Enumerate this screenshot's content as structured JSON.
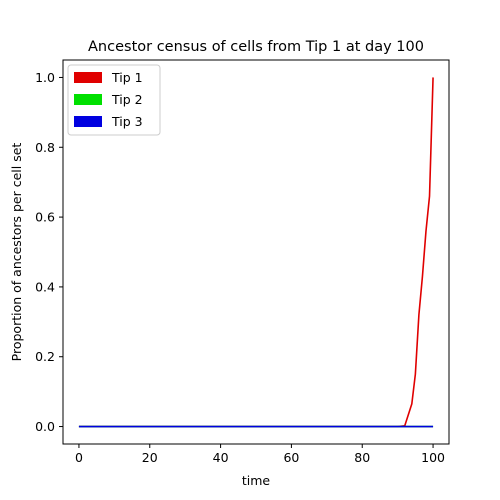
{
  "chart_data": {
    "type": "line",
    "title": "Ancestor census of cells from Tip 1 at day 100",
    "xlabel": "time",
    "ylabel": "Proportion of ancestors per cell set",
    "xlim": [
      -4.5,
      104.5
    ],
    "ylim": [
      -0.05,
      1.05
    ],
    "x_ticks": [
      0,
      20,
      40,
      60,
      80,
      100
    ],
    "x_tick_labels": [
      "0",
      "20",
      "40",
      "60",
      "80",
      "100"
    ],
    "y_ticks": [
      0.0,
      0.2,
      0.4,
      0.6,
      0.8,
      1.0
    ],
    "y_tick_labels": [
      "0.0",
      "0.2",
      "0.4",
      "0.6",
      "0.8",
      "1.0"
    ],
    "grid": false,
    "legend_position": "top-left",
    "series": [
      {
        "name": "Tip 1",
        "color": "#e00000",
        "x": [
          0,
          90,
          92,
          94,
          95,
          96,
          97,
          98,
          99,
          100
        ],
        "y": [
          0.0,
          0.0,
          0.002,
          0.065,
          0.15,
          0.32,
          0.43,
          0.56,
          0.66,
          1.0
        ]
      },
      {
        "name": "Tip 2",
        "color": "#00e000",
        "x": [
          0,
          100
        ],
        "y": [
          0.0,
          0.0
        ]
      },
      {
        "name": "Tip 3",
        "color": "#0000e0",
        "x": [
          0,
          100
        ],
        "y": [
          0.0,
          0.0
        ]
      }
    ]
  }
}
